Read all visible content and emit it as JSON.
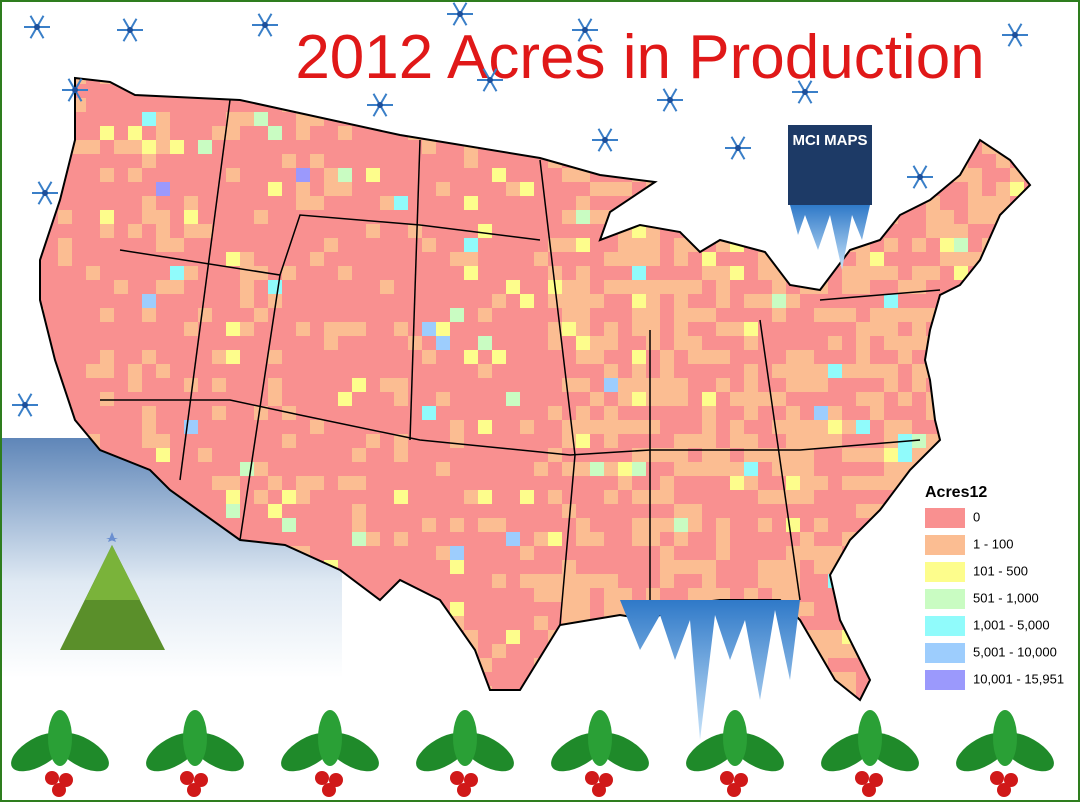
{
  "title": "2012 Acres in Production",
  "logo": "MCI MAPS",
  "legend": {
    "title": "Acres12",
    "items": [
      {
        "label": "0",
        "color": "#f99090"
      },
      {
        "label": "1 - 100",
        "color": "#fbbd92"
      },
      {
        "label": "101 - 500",
        "color": "#fdfd8c"
      },
      {
        "label": "501 - 1,000",
        "color": "#c9fcc2"
      },
      {
        "label": "1,001 - 5,000",
        "color": "#90fbfb"
      },
      {
        "label": "5,001 - 10,000",
        "color": "#9dcdfd"
      },
      {
        "label": "10,001 - 15,951",
        "color": "#9b99fc"
      }
    ]
  }
}
